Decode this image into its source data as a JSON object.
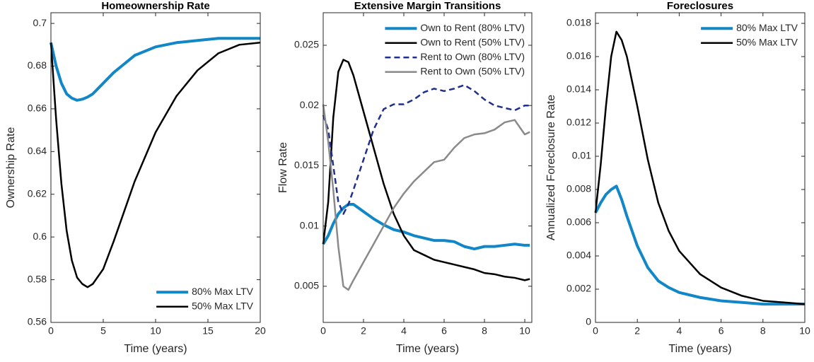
{
  "chart_data": [
    {
      "type": "line",
      "title": "Homeownership Rate",
      "xlabel": "Time (years)",
      "ylabel": "Ownership Rate",
      "x": [
        0,
        0.5,
        1,
        1.5,
        2,
        2.5,
        3,
        3.5,
        4,
        5,
        6,
        7,
        8,
        10,
        12,
        14,
        16,
        18,
        20
      ],
      "series": [
        {
          "name": "80% Max LTV",
          "color": "#1287c8",
          "linewidth": 4,
          "linestyle": "solid",
          "values": [
            0.691,
            0.68,
            0.672,
            0.667,
            0.665,
            0.664,
            0.6645,
            0.6655,
            0.667,
            0.672,
            0.677,
            0.681,
            0.685,
            0.689,
            0.691,
            0.692,
            0.693,
            0.693,
            0.693
          ]
        },
        {
          "name": "50% Max LTV",
          "color": "#000000",
          "linewidth": 2.5,
          "linestyle": "solid",
          "values": [
            0.691,
            0.655,
            0.625,
            0.603,
            0.589,
            0.581,
            0.578,
            0.5765,
            0.578,
            0.585,
            0.598,
            0.612,
            0.626,
            0.649,
            0.666,
            0.678,
            0.686,
            0.69,
            0.691
          ]
        }
      ],
      "xlim": [
        0,
        20
      ],
      "xticks": [
        0,
        5,
        10,
        15,
        20
      ],
      "ylim": [
        0.56,
        0.705
      ],
      "yticks": [
        0.56,
        0.58,
        0.6,
        0.62,
        0.64,
        0.66,
        0.68,
        0.7
      ],
      "legend": "lower right"
    },
    {
      "type": "line",
      "title": "Extensive Margin Transitions",
      "xlabel": "Time (years)",
      "ylabel": "Flow Rate",
      "x": [
        0,
        0.25,
        0.5,
        0.75,
        1,
        1.25,
        1.5,
        2,
        2.5,
        3,
        3.5,
        4,
        4.5,
        5,
        5.5,
        6,
        6.5,
        7,
        7.5,
        8,
        8.5,
        9,
        9.5,
        10,
        10.25
      ],
      "series": [
        {
          "name": "Own to Rent (80% LTV)",
          "color": "#1287c8",
          "linewidth": 4,
          "linestyle": "solid",
          "values": [
            0.0085,
            0.0092,
            0.0102,
            0.011,
            0.0115,
            0.0118,
            0.0118,
            0.0112,
            0.0106,
            0.0101,
            0.0097,
            0.0095,
            0.0092,
            0.009,
            0.0088,
            0.0088,
            0.0087,
            0.0083,
            0.0081,
            0.0083,
            0.0083,
            0.0084,
            0.0085,
            0.0084,
            0.0084
          ]
        },
        {
          "name": "Own to Rent (50% LTV)",
          "color": "#000000",
          "linewidth": 2.5,
          "linestyle": "solid",
          "values": [
            0.0085,
            0.012,
            0.019,
            0.0228,
            0.0238,
            0.0236,
            0.0225,
            0.0195,
            0.0165,
            0.0135,
            0.011,
            0.0092,
            0.008,
            0.0076,
            0.0072,
            0.007,
            0.0068,
            0.0066,
            0.0064,
            0.0061,
            0.006,
            0.0058,
            0.0057,
            0.0055,
            0.0056
          ]
        },
        {
          "name": "Rent to Own (80% LTV)",
          "color": "#1f2f8c",
          "linewidth": 2.5,
          "linestyle": "dashed",
          "values": [
            0.0192,
            0.018,
            0.015,
            0.012,
            0.011,
            0.0118,
            0.013,
            0.0155,
            0.018,
            0.0197,
            0.0201,
            0.0201,
            0.0205,
            0.0211,
            0.0214,
            0.0212,
            0.0214,
            0.0217,
            0.0212,
            0.0205,
            0.02,
            0.0198,
            0.0196,
            0.02,
            0.02
          ]
        },
        {
          "name": "Rent to Own (50% LTV)",
          "color": "#8a8a8a",
          "linewidth": 2.5,
          "linestyle": "solid",
          "values": [
            0.0201,
            0.017,
            0.013,
            0.0083,
            0.005,
            0.0047,
            0.0055,
            0.007,
            0.0085,
            0.01,
            0.0115,
            0.0127,
            0.0137,
            0.0145,
            0.0153,
            0.0155,
            0.0165,
            0.0173,
            0.0176,
            0.0177,
            0.018,
            0.0186,
            0.0188,
            0.0176,
            0.0178
          ]
        }
      ],
      "xlim": [
        0,
        10.35
      ],
      "xticks": [
        0,
        2,
        4,
        6,
        8,
        10
      ],
      "ylim": [
        0.002,
        0.0277
      ],
      "yticks": [
        0.005,
        0.01,
        0.015,
        0.02,
        0.025
      ],
      "legend": "upper right"
    },
    {
      "type": "line",
      "title": "Foreclosures",
      "xlabel": "Time (years)",
      "ylabel": "Annualized Foreclosure Rate",
      "x": [
        0,
        0.25,
        0.5,
        0.75,
        1,
        1.25,
        1.5,
        2,
        2.5,
        3,
        3.5,
        4,
        5,
        6,
        7,
        8,
        9,
        10
      ],
      "series": [
        {
          "name": "80% Max LTV",
          "color": "#1287c8",
          "linewidth": 4,
          "linestyle": "solid",
          "values": [
            0.0066,
            0.0072,
            0.0077,
            0.008,
            0.0082,
            0.0074,
            0.0064,
            0.0046,
            0.0033,
            0.0025,
            0.0021,
            0.0018,
            0.0015,
            0.0013,
            0.0012,
            0.0011,
            0.0011,
            0.0011
          ]
        },
        {
          "name": "50% Max LTV",
          "color": "#000000",
          "linewidth": 2.5,
          "linestyle": "solid",
          "values": [
            0.0066,
            0.0095,
            0.013,
            0.016,
            0.0175,
            0.017,
            0.016,
            0.013,
            0.0098,
            0.0072,
            0.0055,
            0.0043,
            0.0029,
            0.0021,
            0.0016,
            0.0013,
            0.0012,
            0.0011
          ]
        }
      ],
      "xlim": [
        0,
        10
      ],
      "xticks": [
        0,
        2,
        4,
        6,
        8,
        10
      ],
      "ylim": [
        0,
        0.01864
      ],
      "yticks": [
        0,
        0.002,
        0.004,
        0.006,
        0.008,
        0.01,
        0.012,
        0.014,
        0.016,
        0.018
      ],
      "legend": "upper right"
    }
  ]
}
